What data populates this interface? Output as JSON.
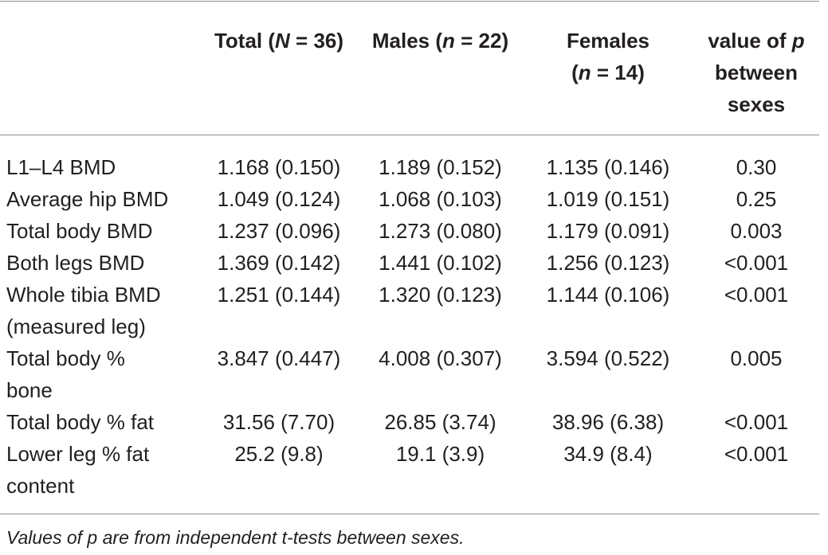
{
  "table": {
    "headers": {
      "total": {
        "label": "Total (",
        "var": "N",
        "eq": " = 36)"
      },
      "males": {
        "label": "Males (",
        "var": "n",
        "eq": " = 22)"
      },
      "females": {
        "line1": "Females",
        "open": "(",
        "var": "n",
        "eq": " = 14)"
      },
      "pvalue": {
        "line1": "value of ",
        "var": "p",
        "line2": "between",
        "line3": "sexes"
      }
    },
    "rows": [
      {
        "label": [
          "L1–L4 BMD"
        ],
        "total": "1.168 (0.150)",
        "males": "1.189 (0.152)",
        "females": "1.135 (0.146)",
        "p": "0.30"
      },
      {
        "label": [
          "Average hip BMD"
        ],
        "total": "1.049 (0.124)",
        "males": "1.068 (0.103)",
        "females": "1.019 (0.151)",
        "p": "0.25"
      },
      {
        "label": [
          "Total body BMD"
        ],
        "total": "1.237 (0.096)",
        "males": "1.273 (0.080)",
        "females": "1.179 (0.091)",
        "p": "0.003"
      },
      {
        "label": [
          "Both legs BMD"
        ],
        "total": "1.369 (0.142)",
        "males": "1.441 (0.102)",
        "females": "1.256 (0.123)",
        "p": "<0.001"
      },
      {
        "label": [
          "Whole tibia BMD",
          "(measured leg)"
        ],
        "total": "1.251 (0.144)",
        "males": "1.320 (0.123)",
        "females": "1.144 (0.106)",
        "p": "<0.001"
      },
      {
        "label": [
          "Total body %",
          "bone"
        ],
        "total": "3.847 (0.447)",
        "males": "4.008 (0.307)",
        "females": "3.594 (0.522)",
        "p": "0.005"
      },
      {
        "label": [
          "Total body % fat"
        ],
        "total": "31.56 (7.70)",
        "males": "26.85 (3.74)",
        "females": "38.96 (6.38)",
        "p": "<0.001"
      },
      {
        "label": [
          "Lower leg % fat",
          "content"
        ],
        "total": "25.2 (9.8)",
        "males": "19.1 (3.9)",
        "females": "34.9 (8.4)",
        "p": "<0.001"
      }
    ]
  },
  "footnote": "Values of p are from independent t-tests between sexes."
}
